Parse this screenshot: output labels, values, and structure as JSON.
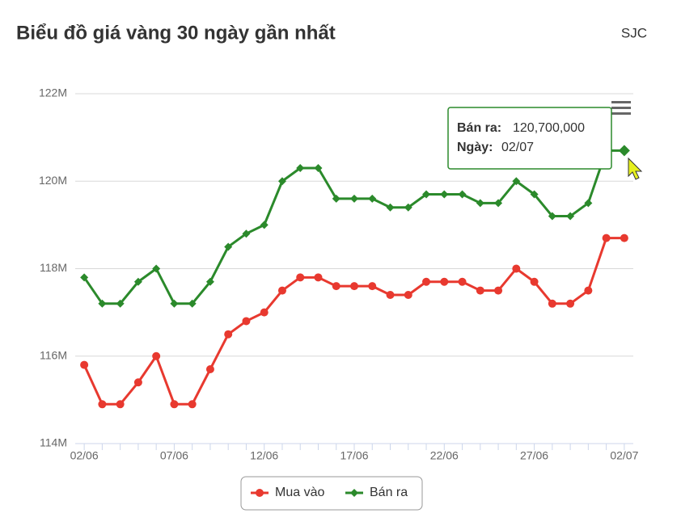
{
  "chart_data": {
    "type": "line",
    "title": "Biểu đồ giá vàng 30 ngày gần nhất",
    "source_label": "SJC",
    "categories": [
      "02/06",
      null,
      null,
      null,
      null,
      "07/06",
      null,
      null,
      null,
      null,
      "12/06",
      null,
      null,
      null,
      null,
      "17/06",
      null,
      null,
      null,
      null,
      "22/06",
      null,
      null,
      null,
      null,
      "27/06",
      null,
      null,
      null,
      null,
      "02/07"
    ],
    "series": [
      {
        "name": "Mua vào",
        "color": "#e8392f",
        "marker": "circle",
        "values": [
          115800000,
          114900000,
          114900000,
          115400000,
          116000000,
          114900000,
          114900000,
          115700000,
          116500000,
          116800000,
          117000000,
          117500000,
          117800000,
          117800000,
          117600000,
          117600000,
          117600000,
          117400000,
          117400000,
          117700000,
          117700000,
          117700000,
          117500000,
          117500000,
          118000000,
          117700000,
          117200000,
          117200000,
          117500000,
          118700000,
          118700000
        ]
      },
      {
        "name": "Bán ra",
        "color": "#2b8a2b",
        "marker": "diamond",
        "values": [
          117800000,
          117200000,
          117200000,
          117700000,
          118000000,
          117200000,
          117200000,
          117700000,
          118500000,
          118800000,
          119000000,
          120000000,
          120300000,
          120300000,
          119600000,
          119600000,
          119600000,
          119400000,
          119400000,
          119700000,
          119700000,
          119700000,
          119500000,
          119500000,
          120000000,
          119700000,
          119200000,
          119200000,
          119500000,
          120700000,
          120700000
        ]
      }
    ],
    "ylim": [
      114000000,
      122000000
    ],
    "yticks": [
      {
        "value": 114000000,
        "label": "114M"
      },
      {
        "value": 116000000,
        "label": "116M"
      },
      {
        "value": 118000000,
        "label": "118M"
      },
      {
        "value": 120000000,
        "label": "120M"
      },
      {
        "value": 122000000,
        "label": "122M"
      }
    ],
    "grid": true,
    "tooltip": {
      "rows": [
        {
          "label": "Bán ra:",
          "value": "120,700,000"
        },
        {
          "label": "Ngày:",
          "value": "02/07"
        }
      ]
    }
  }
}
